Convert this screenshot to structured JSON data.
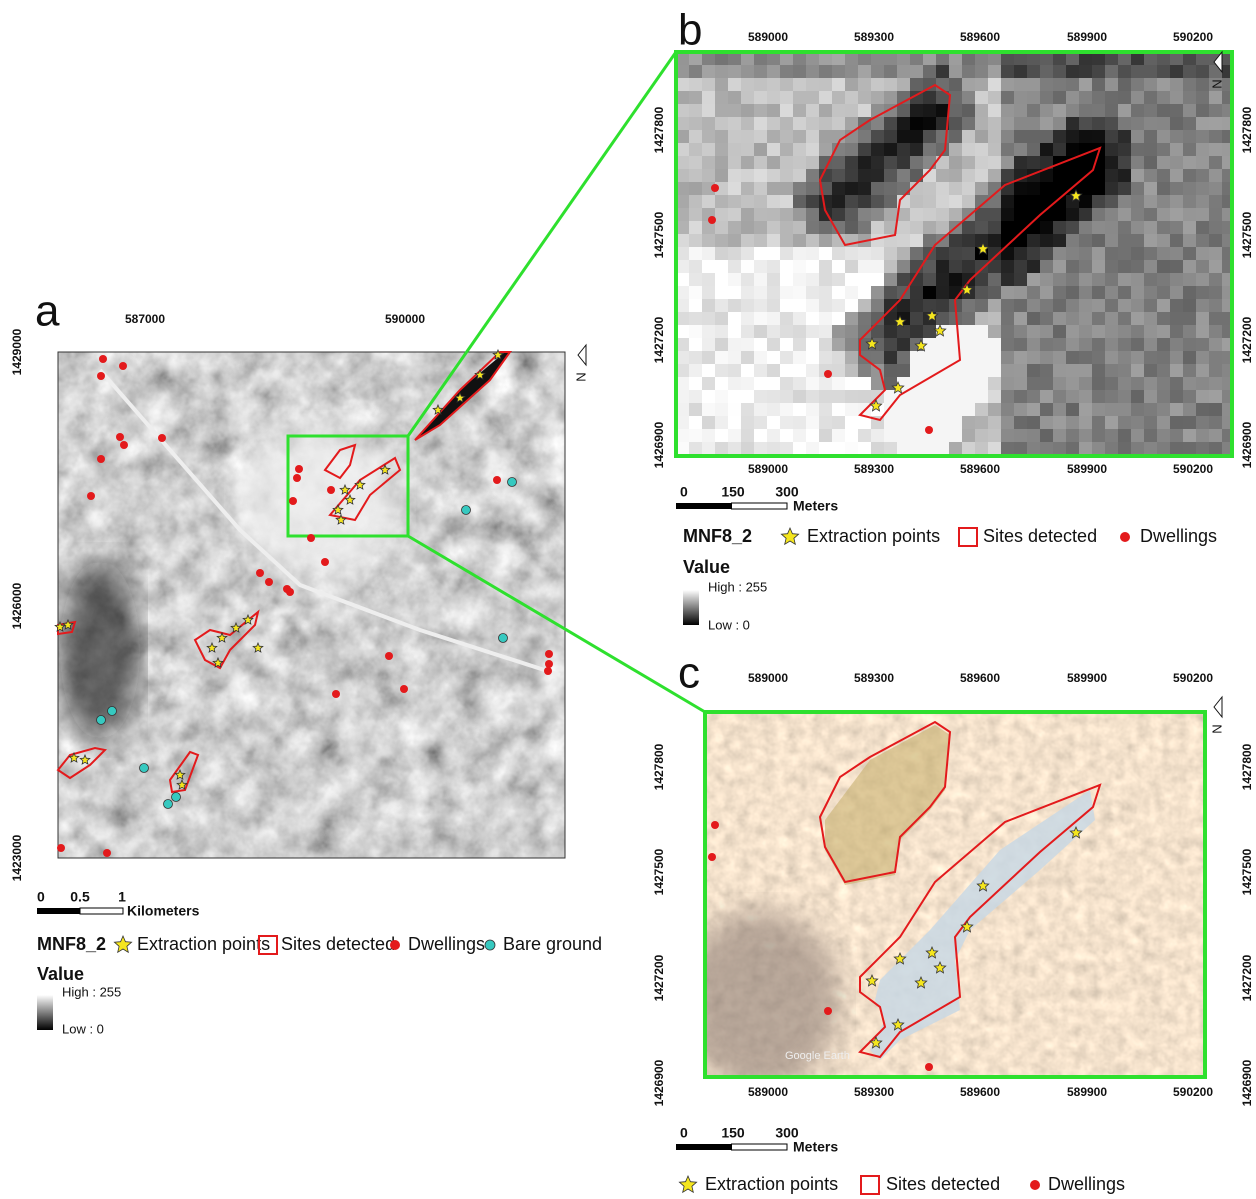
{
  "panels": [
    {
      "label": "a",
      "top_ticks": [
        "587000",
        "590000"
      ],
      "left_ticks": [
        "1429000",
        "1426000",
        "1423000"
      ],
      "north": "N",
      "scale": {
        "ticks": [
          "0",
          "0.5",
          "1"
        ],
        "unit": "Kilometers"
      },
      "legend": {
        "title": "MNF8_2",
        "items": [
          "Extraction points",
          "Sites detected",
          "Dwellings",
          "Bare ground"
        ],
        "value_title": "Value",
        "high": "High : 255",
        "low": "Low : 0"
      }
    },
    {
      "label": "b",
      "top_ticks": [
        "589000",
        "589300",
        "589600",
        "589900",
        "590200"
      ],
      "bottom_ticks": [
        "589000",
        "589300",
        "589600",
        "589900",
        "590200"
      ],
      "left_ticks": [
        "1427800",
        "1427500",
        "1427200",
        "1426900"
      ],
      "right_ticks": [
        "1427800",
        "1427500",
        "1427200",
        "1426900"
      ],
      "north": "N",
      "scale": {
        "ticks": [
          "0",
          "150",
          "300"
        ],
        "unit": "Meters"
      },
      "legend": {
        "title": "MNF8_2",
        "items": [
          "Extraction points",
          "Sites detected",
          "Dwellings"
        ],
        "value_title": "Value",
        "high": "High : 255",
        "low": "Low : 0"
      }
    },
    {
      "label": "c",
      "top_ticks": [
        "589000",
        "589300",
        "589600",
        "589900",
        "590200"
      ],
      "bottom_ticks": [
        "589000",
        "589300",
        "589600",
        "589900",
        "590200"
      ],
      "left_ticks": [
        "1427800",
        "1427500",
        "1427200",
        "1426900"
      ],
      "right_ticks": [
        "1427800",
        "1427500",
        "1427200",
        "1426900"
      ],
      "north": "N",
      "watermark": "Google Earth",
      "scale": {
        "ticks": [
          "0",
          "150",
          "300"
        ],
        "unit": "Meters"
      },
      "legend": {
        "items": [
          "Extraction points",
          "Sites detected",
          "Dwellings"
        ]
      }
    }
  ]
}
